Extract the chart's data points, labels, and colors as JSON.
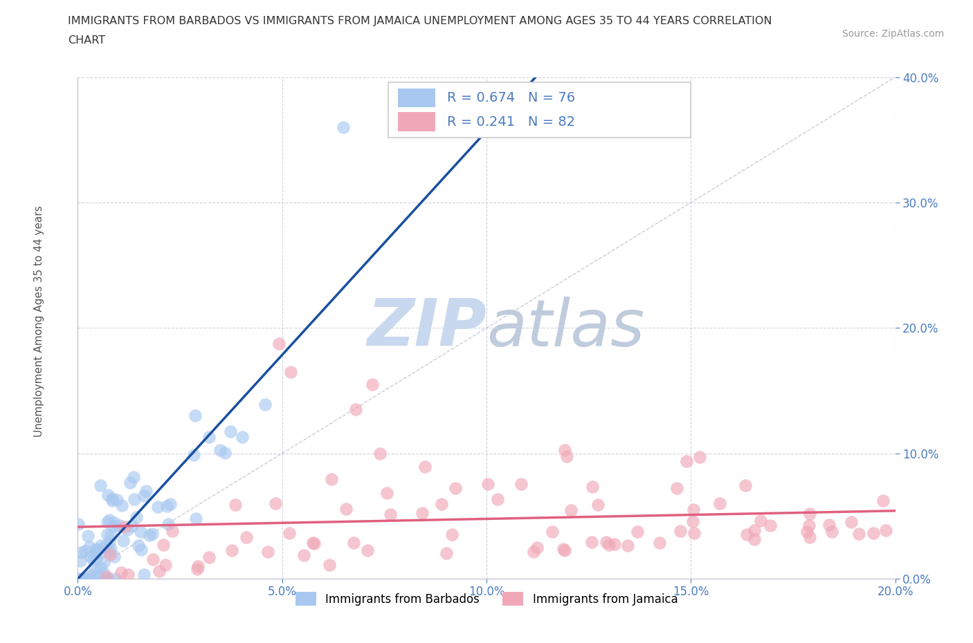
{
  "title_line1": "IMMIGRANTS FROM BARBADOS VS IMMIGRANTS FROM JAMAICA UNEMPLOYMENT AMONG AGES 35 TO 44 YEARS CORRELATION",
  "title_line2": "CHART",
  "source_text": "Source: ZipAtlas.com",
  "ylabel": "Unemployment Among Ages 35 to 44 years",
  "legend_label1": "Immigrants from Barbados",
  "legend_label2": "Immigrants from Jamaica",
  "R1": 0.674,
  "N1": 76,
  "R2": 0.241,
  "N2": 82,
  "xlim": [
    0.0,
    0.2
  ],
  "ylim": [
    0.0,
    0.4
  ],
  "xticks": [
    0.0,
    0.05,
    0.1,
    0.15,
    0.2
  ],
  "yticks": [
    0.0,
    0.1,
    0.2,
    0.3,
    0.4
  ],
  "color_barbados": "#a8c8f0",
  "color_jamaica": "#f0a8b8",
  "color_barbados_line": "#1a4fa0",
  "color_jamaica_line": "#e06080",
  "watermark_color": "#c8d8ee",
  "background_color": "#ffffff",
  "grid_color": "#c8c8d8",
  "title_color": "#333333",
  "source_color": "#999999",
  "tick_color": "#4a7cc0",
  "ylabel_color": "#555555"
}
